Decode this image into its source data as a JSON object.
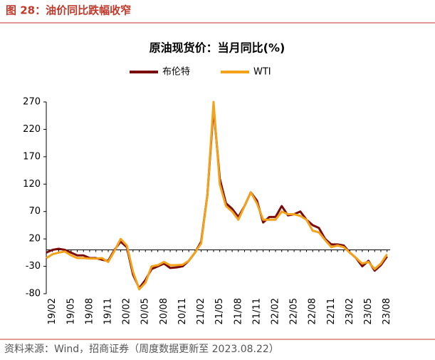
{
  "header": "图 28：油价同比跌幅收窄",
  "source": "资料来源：Wind，招商证券（周度数据更新至 2023.08.22）",
  "chart_data": {
    "type": "line",
    "title": "原油现货价：当月同比(%)",
    "categories": [
      null,
      "19/02",
      null,
      null,
      "19/05",
      null,
      null,
      "19/08",
      null,
      null,
      "19/11",
      null,
      null,
      "20/02",
      null,
      null,
      "20/05",
      null,
      null,
      "20/08",
      null,
      null,
      "20/11",
      null,
      null,
      "21/02",
      null,
      null,
      "21/05",
      null,
      null,
      "21/08",
      null,
      null,
      "21/11",
      null,
      null,
      "22/02",
      null,
      null,
      "22/05",
      null,
      null,
      "22/08",
      null,
      null,
      "22/11",
      null,
      null,
      "23/02",
      null,
      null,
      "23/05",
      null,
      null,
      "23/08"
    ],
    "series": [
      {
        "name": "布伦特",
        "color": "#7b0c0c",
        "values": [
          -5,
          0,
          2,
          0,
          -5,
          -10,
          -10,
          -15,
          -15,
          -18,
          -20,
          0,
          15,
          5,
          -45,
          -70,
          -55,
          -35,
          -30,
          -25,
          -33,
          -32,
          -30,
          -20,
          -5,
          15,
          100,
          260,
          130,
          85,
          75,
          60,
          80,
          105,
          90,
          50,
          60,
          60,
          80,
          63,
          65,
          70,
          55,
          45,
          40,
          20,
          10,
          10,
          8,
          -5,
          -15,
          -30,
          -20,
          -38,
          -28,
          -12
        ]
      },
      {
        "name": "WTI",
        "color": "#f5a21b",
        "values": [
          -15,
          -8,
          -5,
          -3,
          -10,
          -15,
          -15,
          -16,
          -16,
          -15,
          -22,
          -2,
          20,
          8,
          -40,
          -72,
          -60,
          -30,
          -28,
          -22,
          -28,
          -28,
          -27,
          -20,
          -5,
          12,
          100,
          270,
          120,
          80,
          70,
          55,
          80,
          105,
          85,
          55,
          55,
          55,
          70,
          65,
          65,
          62,
          55,
          35,
          32,
          18,
          5,
          8,
          5,
          -5,
          -15,
          -25,
          -22,
          -35,
          -25,
          -8
        ]
      }
    ],
    "ylim": [
      -80,
      270
    ],
    "yticks": [
      -80,
      -30,
      20,
      70,
      120,
      170,
      220,
      270
    ],
    "legend": "top"
  }
}
